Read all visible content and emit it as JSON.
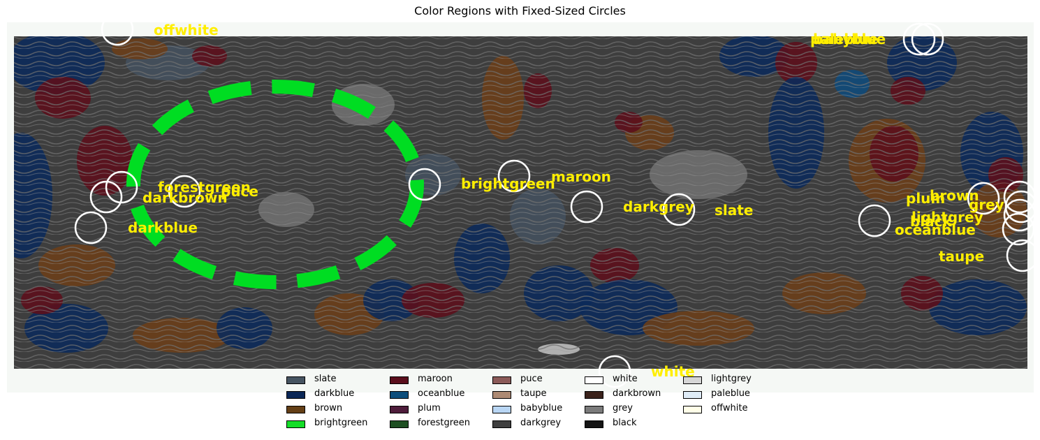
{
  "chart_data": {
    "type": "scatter",
    "title": "Color Regions with Fixed-Sized Circles",
    "background_colors": {
      "base": "#3e3e3e",
      "slate": "#44505d",
      "darkblue": "#0c2a5a",
      "brown": "#6a3e1a",
      "maroon": "#5c0f1c",
      "oceanblue": "#0f4a7a",
      "grey": "#6f6f6f",
      "lightgrey": "#bdbdbd",
      "frame": "#f5f8f5"
    },
    "highlight": {
      "shape": "ellipse",
      "style": "dashed",
      "color": "#00dd22"
    },
    "circle_color": "#ffffff",
    "label_color": "#ffee00",
    "labels": [
      {
        "text": "offwhite"
      },
      {
        "text": "paleblue"
      },
      {
        "text": "babyblue"
      },
      {
        "text": "forestgreen"
      },
      {
        "text": "puce"
      },
      {
        "text": "darkbrown"
      },
      {
        "text": "darkblue"
      },
      {
        "text": "brightgreen"
      },
      {
        "text": "maroon"
      },
      {
        "text": "darkgrey"
      },
      {
        "text": "slate"
      },
      {
        "text": "plum"
      },
      {
        "text": "brown"
      },
      {
        "text": "grey"
      },
      {
        "text": "lightgrey"
      },
      {
        "text": "black"
      },
      {
        "text": "oceanblue"
      },
      {
        "text": "taupe"
      },
      {
        "text": "white"
      }
    ],
    "legend": {
      "placement": "bottom-center",
      "columns": [
        [
          {
            "label": "slate",
            "color": "#465461"
          },
          {
            "label": "darkblue",
            "color": "#0a2757"
          },
          {
            "label": "brown",
            "color": "#643f16"
          },
          {
            "label": "brightgreen",
            "color": "#14dd28"
          }
        ],
        [
          {
            "label": "maroon",
            "color": "#5a0e1c"
          },
          {
            "label": "oceanblue",
            "color": "#0c4e7c"
          },
          {
            "label": "plum",
            "color": "#4e1d3b"
          },
          {
            "label": "forestgreen",
            "color": "#1e4f22"
          }
        ],
        [
          {
            "label": "puce",
            "color": "#8b5a58"
          },
          {
            "label": "taupe",
            "color": "#ad8a73"
          },
          {
            "label": "babyblue",
            "color": "#b9d6f4"
          },
          {
            "label": "darkgrey",
            "color": "#3f3f3f"
          }
        ],
        [
          {
            "label": "white",
            "color": "#ffffff"
          },
          {
            "label": "darkbrown",
            "color": "#3a221b"
          },
          {
            "label": "grey",
            "color": "#7b7b7b"
          },
          {
            "label": "black",
            "color": "#151515"
          }
        ],
        [
          {
            "label": "lightgrey",
            "color": "#d6d6d6"
          },
          {
            "label": "paleblue",
            "color": "#dfecf7"
          },
          {
            "label": "offwhite",
            "color": "#fffee8"
          }
        ]
      ]
    }
  }
}
